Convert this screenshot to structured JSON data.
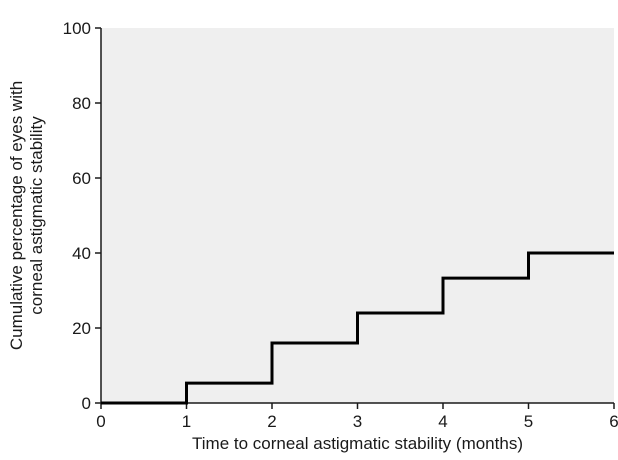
{
  "colors": {
    "plot_background": "#efefef",
    "axis": "#1a1a1a",
    "line": "#000000"
  },
  "chart_data": {
    "type": "line",
    "step": true,
    "title": "",
    "xlabel": "Time to corneal astigmatic stability (months)",
    "ylabel_lines": [
      "Cumulative percentage of eyes with",
      "corneal astigmatic stability"
    ],
    "xlim": [
      0,
      6
    ],
    "ylim": [
      0,
      100
    ],
    "xticks": [
      0,
      1,
      2,
      3,
      4,
      5,
      6
    ],
    "yticks": [
      0,
      20,
      40,
      60,
      80,
      100
    ],
    "grid": false,
    "series": [
      {
        "x": [
          0,
          1,
          1,
          2,
          2,
          3,
          3,
          4,
          4,
          5,
          5,
          6
        ],
        "y": [
          0,
          0,
          5.3,
          5.3,
          16,
          16,
          24,
          24,
          33.3,
          33.3,
          40,
          40
        ]
      }
    ]
  }
}
